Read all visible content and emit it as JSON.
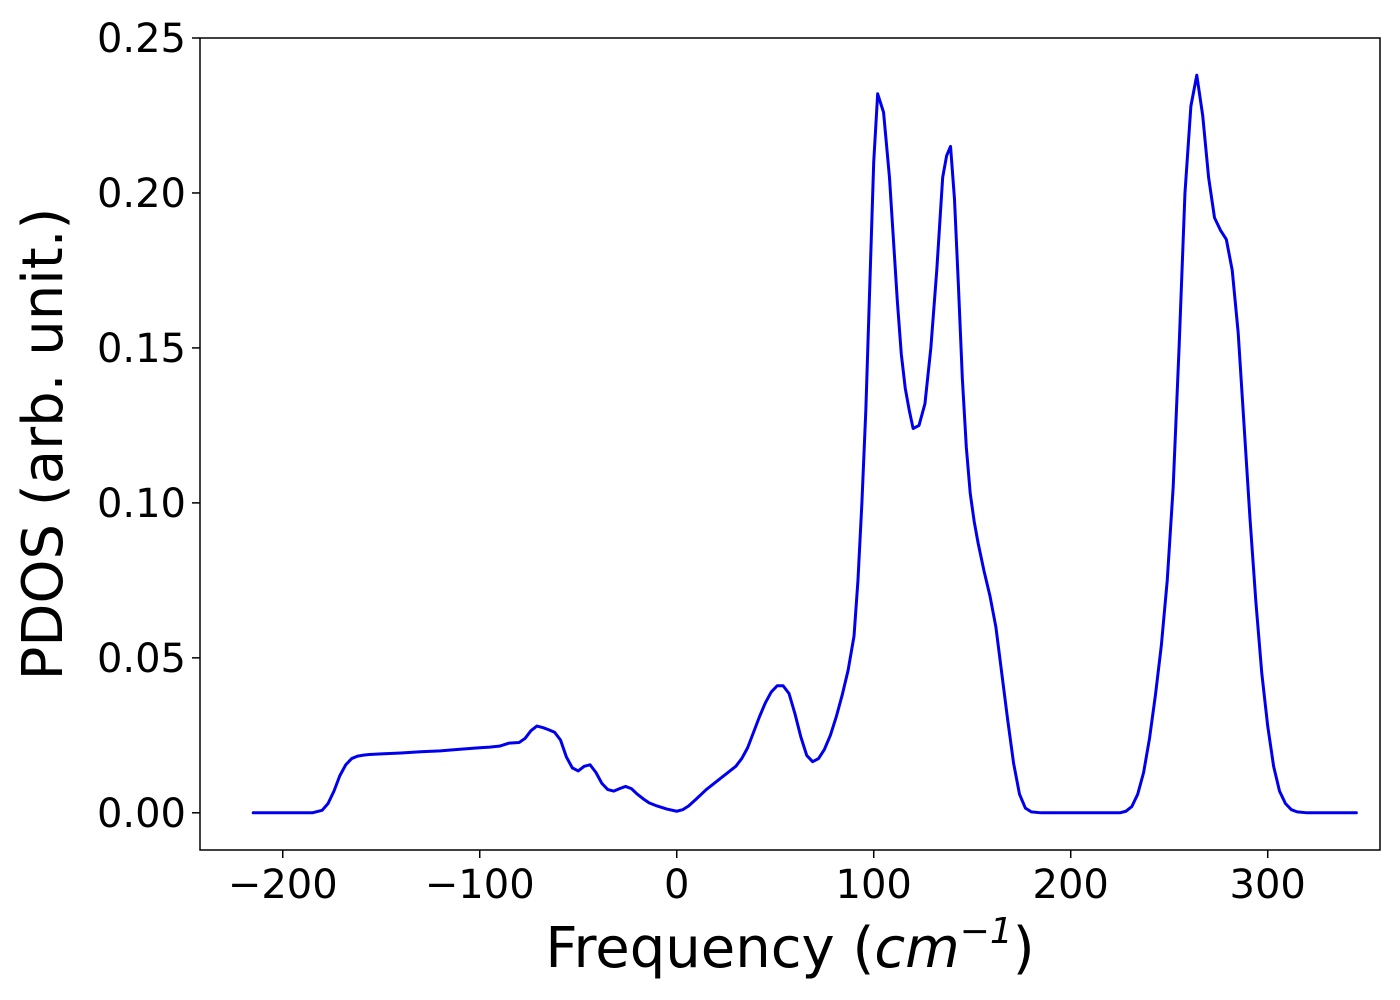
{
  "chart_data": {
    "type": "line",
    "title": "",
    "xlabel_prefix": "Frequency (",
    "xlabel_math_base": "cm",
    "xlabel_math_sup": "−1",
    "xlabel_suffix": ")",
    "ylabel": "PDOS (arb. unit.)",
    "xlim": [
      -242,
      357
    ],
    "ylim": [
      -0.012,
      0.25
    ],
    "xticks": [
      -200,
      -100,
      0,
      100,
      200,
      300
    ],
    "xtick_labels": [
      "−200",
      "−100",
      "0",
      "100",
      "200",
      "300"
    ],
    "yticks": [
      0.0,
      0.05,
      0.1,
      0.15,
      0.2,
      0.25
    ],
    "ytick_labels": [
      "0.00",
      "0.05",
      "0.10",
      "0.15",
      "0.20",
      "0.25"
    ],
    "grid": false,
    "line_color": "#0000ee",
    "series": [
      {
        "x": [
          -215,
          -200,
          -185,
          -180,
          -177,
          -174,
          -171,
          -168,
          -165,
          -162,
          -159,
          -156,
          -150,
          -140,
          -130,
          -120,
          -110,
          -100,
          -95,
          -90,
          -85,
          -80,
          -77,
          -74,
          -71,
          -68,
          -65,
          -62,
          -59,
          -56,
          -53,
          -50,
          -47,
          -44,
          -41,
          -38,
          -35,
          -32,
          -29,
          -26,
          -23,
          -20,
          -17,
          -14,
          -10,
          -5,
          0,
          3,
          6,
          10,
          15,
          20,
          25,
          30,
          33,
          36,
          39,
          42,
          45,
          48,
          51,
          54,
          57,
          60,
          63,
          66,
          69,
          72,
          75,
          78,
          81,
          84,
          87,
          90,
          92,
          94,
          96,
          98,
          100,
          102,
          105,
          108,
          110,
          112,
          114,
          116,
          118,
          120,
          123,
          126,
          129,
          132,
          135,
          137,
          139,
          141,
          143,
          145,
          147,
          149,
          151,
          153,
          156,
          159,
          162,
          165,
          168,
          171,
          174,
          177,
          180,
          185,
          190,
          200,
          210,
          220,
          225,
          228,
          231,
          234,
          237,
          240,
          243,
          246,
          249,
          252,
          255,
          258,
          261,
          264,
          267,
          270,
          273,
          276,
          279,
          282,
          285,
          288,
          291,
          294,
          297,
          300,
          303,
          306,
          309,
          312,
          315,
          320,
          330,
          345
        ],
        "y": [
          0.0,
          0.0,
          0.0,
          0.0008,
          0.003,
          0.007,
          0.012,
          0.0155,
          0.0175,
          0.0183,
          0.0186,
          0.0188,
          0.019,
          0.0193,
          0.0197,
          0.02,
          0.0205,
          0.021,
          0.0212,
          0.0215,
          0.0225,
          0.0227,
          0.024,
          0.0265,
          0.028,
          0.0275,
          0.0268,
          0.026,
          0.0235,
          0.018,
          0.0145,
          0.0135,
          0.015,
          0.0155,
          0.013,
          0.0095,
          0.0075,
          0.007,
          0.0078,
          0.0085,
          0.0078,
          0.006,
          0.0045,
          0.0032,
          0.0022,
          0.0012,
          0.0005,
          0.001,
          0.0022,
          0.0045,
          0.0075,
          0.01,
          0.0125,
          0.015,
          0.0175,
          0.021,
          0.026,
          0.031,
          0.0355,
          0.039,
          0.041,
          0.041,
          0.0385,
          0.032,
          0.0245,
          0.0185,
          0.0165,
          0.0175,
          0.0205,
          0.025,
          0.031,
          0.038,
          0.046,
          0.057,
          0.075,
          0.1,
          0.13,
          0.17,
          0.21,
          0.232,
          0.226,
          0.205,
          0.185,
          0.165,
          0.148,
          0.137,
          0.13,
          0.124,
          0.125,
          0.132,
          0.15,
          0.175,
          0.205,
          0.212,
          0.215,
          0.198,
          0.17,
          0.14,
          0.118,
          0.103,
          0.094,
          0.087,
          0.078,
          0.07,
          0.06,
          0.045,
          0.03,
          0.016,
          0.006,
          0.0015,
          0.0003,
          0.0,
          0.0,
          0.0,
          0.0,
          0.0,
          0.0,
          0.0005,
          0.002,
          0.006,
          0.013,
          0.024,
          0.038,
          0.054,
          0.075,
          0.105,
          0.15,
          0.2,
          0.228,
          0.238,
          0.225,
          0.205,
          0.192,
          0.188,
          0.185,
          0.175,
          0.155,
          0.125,
          0.095,
          0.068,
          0.045,
          0.028,
          0.015,
          0.007,
          0.003,
          0.001,
          0.0003,
          0.0,
          0.0,
          0.0
        ]
      }
    ]
  }
}
